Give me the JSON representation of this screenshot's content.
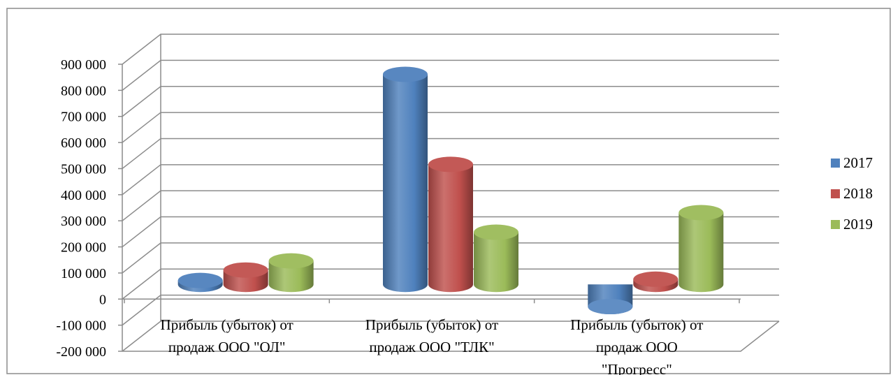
{
  "chart_data": {
    "type": "bar",
    "title": "",
    "xlabel": "",
    "ylabel": "",
    "ylim": [
      -200000,
      900000
    ],
    "ytick_step": 100000,
    "yticks": [
      "900 000",
      "800 000",
      "700 000",
      "600 000",
      "500 000",
      "400 000",
      "300 000",
      "200 000",
      "100 000",
      "0",
      "-100 000",
      "-200 000"
    ],
    "categories": [
      [
        "Прибыль (убыток) от",
        "продаж ООО \"ОЛ\""
      ],
      [
        "Прибыль (убыток) от",
        "продаж ООО \"ТЛК\""
      ],
      [
        "Прибыль (убыток) от",
        "продаж ООО",
        "\"Прогресс\""
      ]
    ],
    "series": [
      {
        "name": "2017",
        "color": "#4f81bd",
        "values": [
          15000,
          805000,
          -85000
        ]
      },
      {
        "name": "2018",
        "color": "#c0504d",
        "values": [
          55000,
          460000,
          20000
        ]
      },
      {
        "name": "2019",
        "color": "#9bbb59",
        "values": [
          90000,
          200000,
          275000
        ]
      }
    ],
    "grid": true,
    "legend_position": "right",
    "style": "3d-cylinder"
  }
}
